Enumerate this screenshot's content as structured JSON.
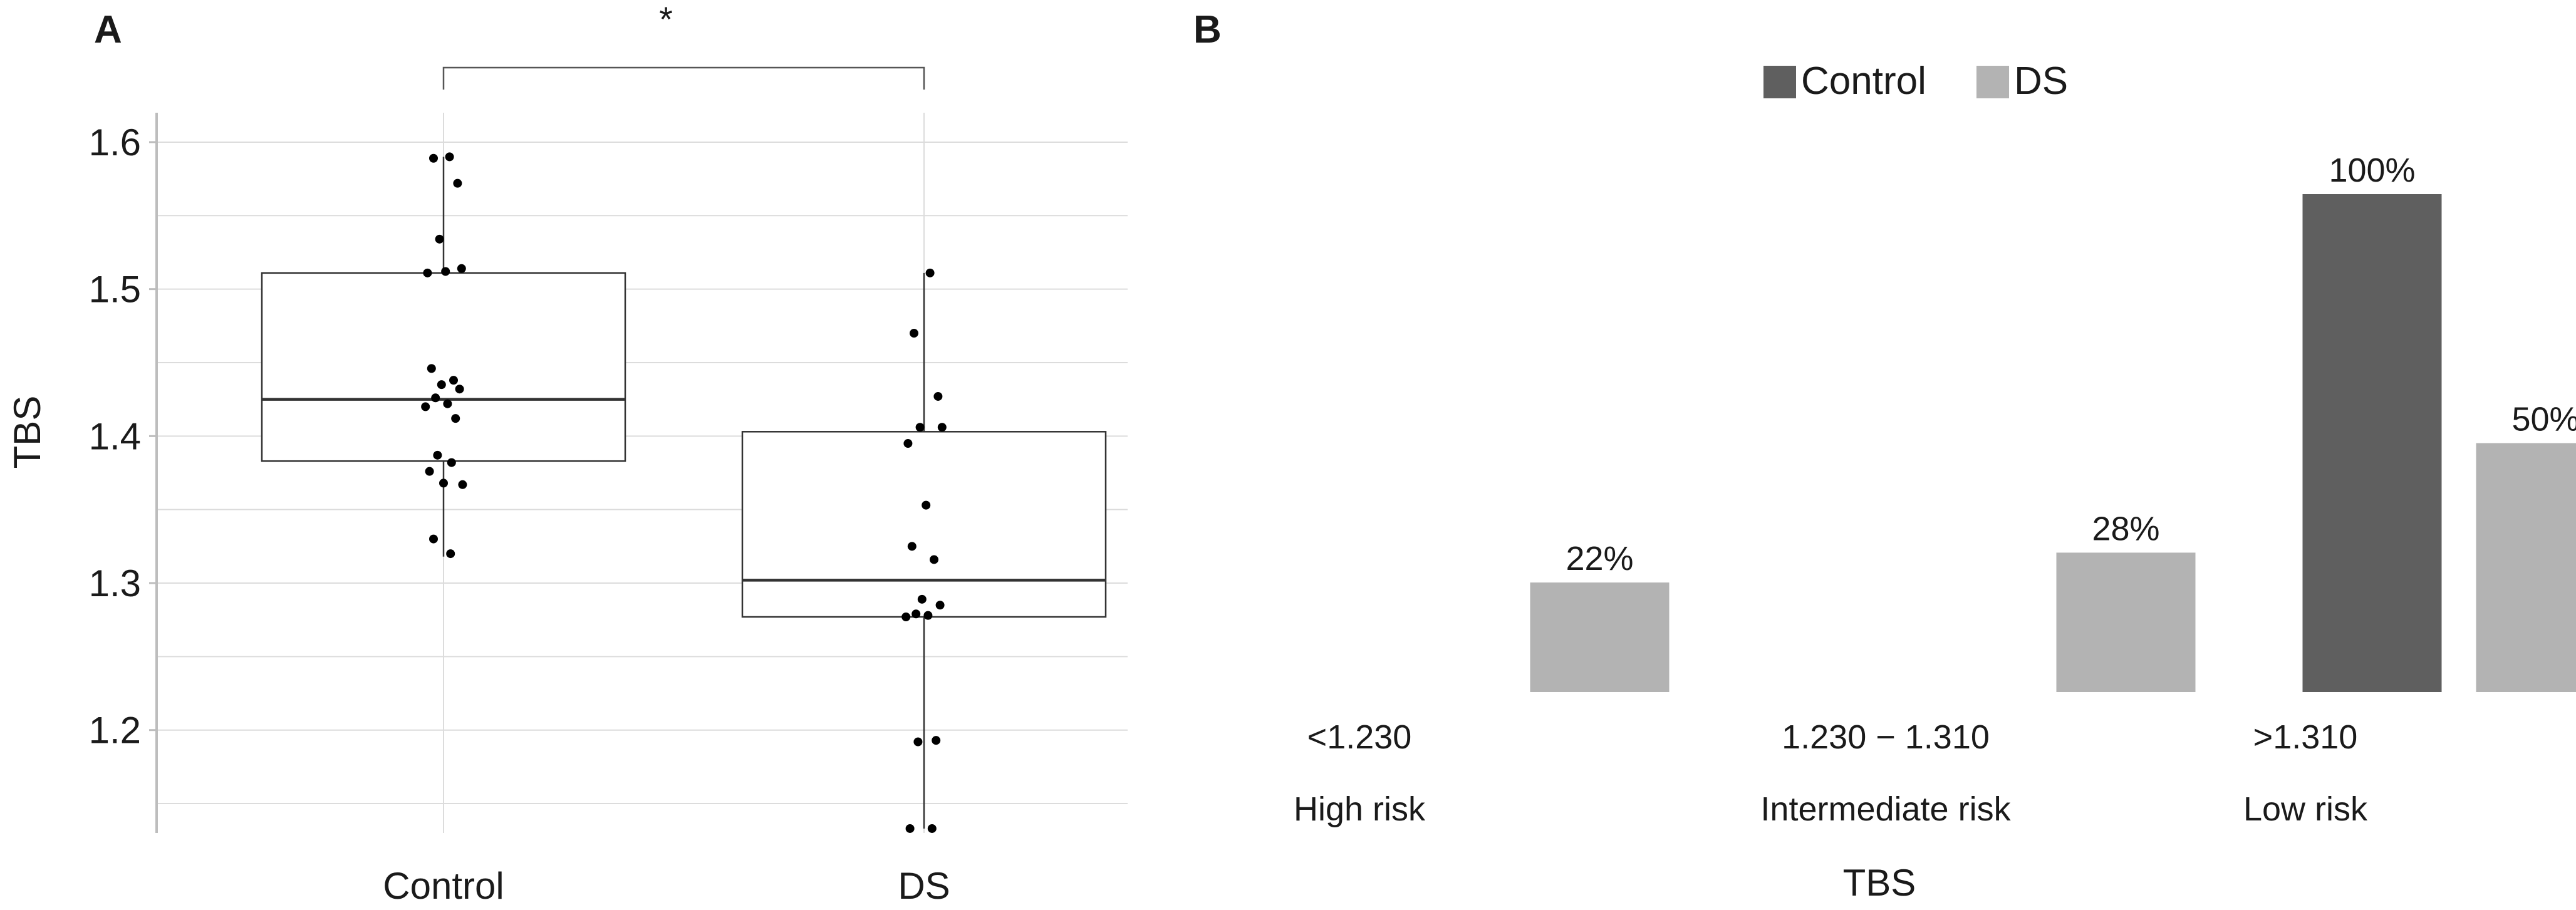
{
  "panel_a_label": "A",
  "panel_b_label": "B",
  "chart_data": [
    {
      "type": "box",
      "panel": "A",
      "ylabel": "TBS",
      "ylim": [
        1.13,
        1.62
      ],
      "yticks": [
        "1.2",
        "1.3",
        "1.4",
        "1.5",
        "1.6"
      ],
      "ytick_values": [
        1.2,
        1.3,
        1.4,
        1.5,
        1.6
      ],
      "grid": true,
      "significance": "*",
      "groups": [
        {
          "name": "Control",
          "q1": 1.383,
          "median": 1.425,
          "q3": 1.511,
          "whisker_low": 1.318,
          "whisker_high": 1.59,
          "points": [
            1.59,
            1.589,
            1.572,
            1.534,
            1.514,
            1.511,
            1.512,
            1.446,
            1.438,
            1.435,
            1.432,
            1.426,
            1.422,
            1.42,
            1.412,
            1.387,
            1.382,
            1.376,
            1.368,
            1.367,
            1.33,
            1.32
          ]
        },
        {
          "name": "DS",
          "q1": 1.277,
          "median": 1.302,
          "q3": 1.403,
          "whisker_low": 1.133,
          "whisker_high": 1.511,
          "points": [
            1.511,
            1.47,
            1.427,
            1.406,
            1.406,
            1.395,
            1.353,
            1.325,
            1.316,
            1.289,
            1.285,
            1.279,
            1.278,
            1.277,
            1.193,
            1.192,
            1.133,
            1.133
          ]
        }
      ]
    },
    {
      "type": "bar",
      "panel": "B",
      "xlabel": "TBS",
      "categories": [
        "<1.230",
        "1.230 − 1.310",
        ">1.310"
      ],
      "subcategories": [
        "High risk",
        "Intermediate risk",
        "Low risk"
      ],
      "series": [
        {
          "name": "Control",
          "color": "#5f5f5f",
          "values": [
            0,
            0,
            100
          ],
          "labels": [
            "",
            "",
            "100%"
          ]
        },
        {
          "name": "DS",
          "color": "#b3b3b3",
          "values": [
            22,
            28,
            50
          ],
          "labels": [
            "22%",
            "28%",
            "50%"
          ]
        }
      ],
      "legend_position": "top"
    }
  ]
}
